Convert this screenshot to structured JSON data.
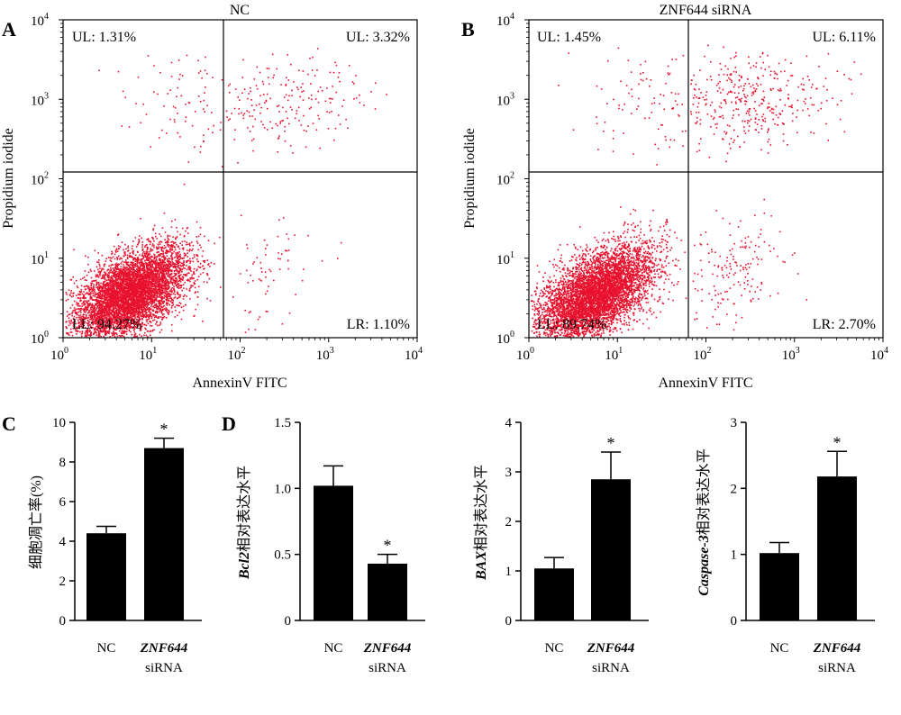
{
  "panels": {
    "a": "A",
    "b": "B",
    "c": "C",
    "d": "D"
  },
  "flow": [
    {
      "title": "NC",
      "xlabel": "AnnexinV FITC",
      "ylabel": "Propidium iodide",
      "UL": "UL: 1.31%",
      "UR": "UL: 3.32%",
      "LL": "LL: 94.27%",
      "LR": "LR: 1.10%"
    },
    {
      "title": "ZNF644 siRNA",
      "xlabel": "AnnexinV FITC",
      "ylabel": "Propidium iodide",
      "UL": "UL: 1.45%",
      "UR": "UL: 6.11%",
      "LL": "LL: 89.74%",
      "LR": "LR: 2.70%"
    }
  ],
  "flow_ticks": {
    "base": "10",
    "exponents": [
      "0",
      "1",
      "2",
      "3",
      "4"
    ]
  },
  "colors": {
    "dots": "#e8112d",
    "bars": "#000000"
  },
  "chart_data": [
    {
      "type": "scatter",
      "title": "NC",
      "xlabel": "AnnexinV FITC",
      "ylabel": "Propidium iodide",
      "x_scale": "log",
      "y_scale": "log",
      "xlim": [
        1,
        10000
      ],
      "ylim": [
        1,
        10000
      ],
      "quadrants": {
        "UL": 1.31,
        "UR": 3.32,
        "LL": 94.27,
        "LR": 1.1
      }
    },
    {
      "type": "scatter",
      "title": "ZNF644 siRNA",
      "xlabel": "AnnexinV FITC",
      "ylabel": "Propidium iodide",
      "x_scale": "log",
      "y_scale": "log",
      "xlim": [
        1,
        10000
      ],
      "ylim": [
        1,
        10000
      ],
      "quadrants": {
        "UL": 1.45,
        "UR": 6.11,
        "LL": 89.74,
        "LR": 2.7
      }
    },
    {
      "type": "bar",
      "ylabel": "细胞凋亡率(%)",
      "categories": [
        "NC",
        "ZNF644 siRNA"
      ],
      "values": [
        4.4,
        8.7
      ],
      "errors": [
        0.35,
        0.5
      ],
      "significance": [
        "",
        "*"
      ],
      "ylim": [
        0,
        10
      ],
      "yticks": [
        "0",
        "2",
        "4",
        "6",
        "8",
        "10"
      ]
    },
    {
      "type": "bar",
      "ylabel_italic": "Bcl2",
      "ylabel_rest": "相对表达水平",
      "categories": [
        "NC",
        "ZNF644 siRNA"
      ],
      "values": [
        1.02,
        0.43
      ],
      "errors": [
        0.15,
        0.07
      ],
      "significance": [
        "",
        "*"
      ],
      "ylim": [
        0,
        1.5
      ],
      "yticks": [
        "0",
        "0.5",
        "1.0",
        "1.5"
      ]
    },
    {
      "type": "bar",
      "ylabel_italic": "BAX",
      "ylabel_rest": "相对表达水平",
      "categories": [
        "NC",
        "ZNF644 siRNA"
      ],
      "values": [
        1.05,
        2.85
      ],
      "errors": [
        0.22,
        0.55
      ],
      "significance": [
        "",
        "*"
      ],
      "ylim": [
        0,
        4
      ],
      "yticks": [
        "0",
        "1",
        "2",
        "3",
        "4"
      ]
    },
    {
      "type": "bar",
      "ylabel_italic": "Caspase-3",
      "ylabel_rest": "相对表达水平",
      "categories": [
        "NC",
        "ZNF644 siRNA"
      ],
      "values": [
        1.02,
        2.18
      ],
      "errors": [
        0.16,
        0.38
      ],
      "significance": [
        "",
        "*"
      ],
      "ylim": [
        0,
        3
      ],
      "yticks": [
        "0",
        "1",
        "2",
        "3"
      ]
    }
  ],
  "bar_labels": {
    "nc": "NC",
    "znf": "ZNF644",
    "sirna": "siRNA"
  }
}
